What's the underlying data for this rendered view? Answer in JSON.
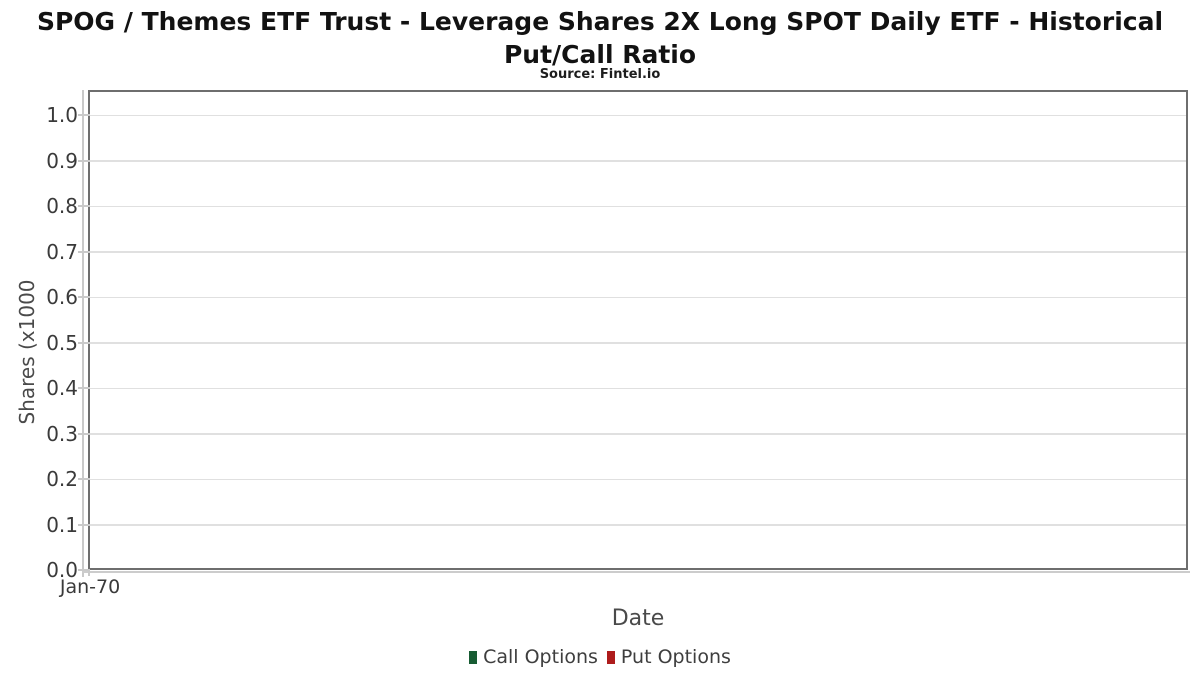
{
  "chart_data": {
    "type": "bar",
    "title": "SPOG / Themes ETF Trust - Leverage Shares 2X Long SPOT Daily ETF - Historical Put/Call Ratio",
    "subtitle": "Source: Fintel.io",
    "xlabel": "Date",
    "ylabel": "Shares (x1000",
    "x_ticks": [
      "Jan-70"
    ],
    "y_ticks": [
      "0.0",
      "0.1",
      "0.2",
      "0.3",
      "0.4",
      "0.5",
      "0.6",
      "0.7",
      "0.8",
      "0.9",
      "1.0"
    ],
    "ylim": [
      0,
      1.055
    ],
    "grid": "horizontal",
    "legend_position": "bottom-center",
    "series": [
      {
        "name": "Call Options",
        "color": "#175C33",
        "values": []
      },
      {
        "name": "Put Options",
        "color": "#AE1C1C",
        "values": []
      }
    ]
  }
}
